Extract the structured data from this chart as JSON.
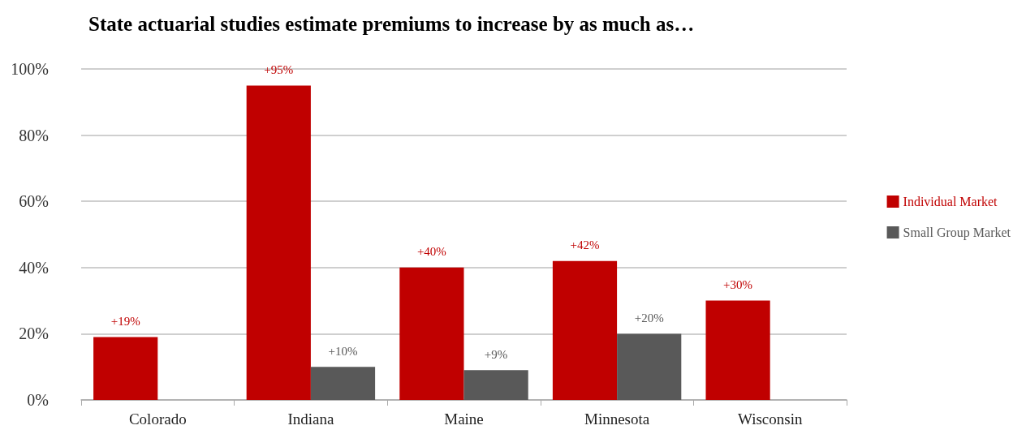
{
  "chart_data": {
    "type": "bar",
    "title": "State actuarial studies estimate premiums to increase by as much as…",
    "categories": [
      "Colorado",
      "Indiana",
      "Maine",
      "Minnesota",
      "Wisconsin"
    ],
    "series": [
      {
        "name": "Individual Market",
        "color": "#c00000",
        "values": [
          19,
          95,
          40,
          42,
          30
        ],
        "value_labels": [
          "+19%",
          "+95%",
          "+40%",
          "+42%",
          "+30%"
        ]
      },
      {
        "name": "Small Group Market",
        "color": "#595959",
        "values": [
          null,
          10,
          9,
          20,
          null
        ],
        "value_labels": [
          null,
          "+10%",
          "+9%",
          "+20%",
          null
        ]
      }
    ],
    "ylim": [
      0,
      100
    ],
    "yticks": [
      {
        "value": 0,
        "label": "0%"
      },
      {
        "value": 20,
        "label": "20%"
      },
      {
        "value": 40,
        "label": "40%"
      },
      {
        "value": 60,
        "label": "60%"
      },
      {
        "value": 80,
        "label": "80%"
      },
      {
        "value": 100,
        "label": "100%"
      }
    ],
    "grid": "y",
    "legend": "right"
  }
}
